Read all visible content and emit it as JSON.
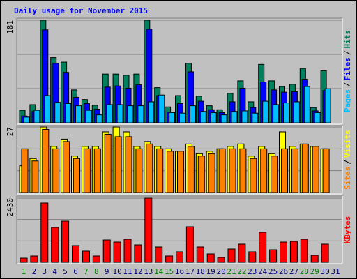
{
  "chart_data": [
    {
      "type": "bar",
      "title": "Daily usage for November 2015",
      "ylim": [
        0,
        181
      ],
      "yticks": [
        181
      ],
      "legend_separator": "/",
      "series": [
        {
          "name": "Hits",
          "color": "#00805c",
          "values": [
            22,
            32,
            181,
            115,
            107,
            58,
            41,
            31,
            86,
            86,
            84,
            86,
            181,
            62,
            28,
            48,
            105,
            47,
            30,
            23,
            52,
            74,
            37,
            103,
            74,
            64,
            68,
            96,
            27,
            92,
            null
          ]
        },
        {
          "name": "Files",
          "color": "#0000ff",
          "values": [
            12,
            20,
            164,
            105,
            89,
            45,
            34,
            24,
            63,
            65,
            61,
            67,
            165,
            48,
            19,
            34,
            90,
            38,
            23,
            18,
            37,
            61,
            27,
            72,
            58,
            54,
            55,
            77,
            21,
            57,
            null
          ]
        },
        {
          "name": "Pages",
          "color": "#00c0ff",
          "values": [
            10,
            22,
            48,
            36,
            34,
            30,
            22,
            14,
            32,
            32,
            30,
            30,
            37,
            49,
            18,
            17,
            30,
            20,
            18,
            14,
            20,
            21,
            17,
            38,
            32,
            35,
            37,
            64,
            18,
            60,
            null
          ]
        }
      ]
    },
    {
      "type": "bar",
      "ylim": [
        0,
        27
      ],
      "yticks": [
        27
      ],
      "legend_separator": "/",
      "series": [
        {
          "name": "Visits",
          "color": "#ffff00",
          "values": [
            11,
            14,
            27,
            19,
            22,
            15,
            19,
            19,
            25,
            27,
            25,
            19,
            21,
            19,
            18,
            17,
            20,
            16,
            17,
            18,
            19,
            20,
            15,
            19,
            16,
            25,
            19,
            20,
            19,
            18,
            null
          ]
        },
        {
          "name": "Sites",
          "color": "#ff8000",
          "values": [
            18,
            13,
            26,
            18,
            21,
            14,
            18,
            18,
            24,
            23,
            23,
            18,
            20,
            18,
            17,
            17,
            19,
            15,
            16,
            18,
            18,
            18,
            14,
            18,
            15,
            18,
            18,
            20,
            19,
            18,
            null
          ]
        }
      ]
    },
    {
      "type": "bar",
      "ylim": [
        0,
        2430
      ],
      "yticks": [
        2430
      ],
      "categories": [
        "1",
        "2",
        "3",
        "4",
        "5",
        "6",
        "7",
        "8",
        "9",
        "10",
        "11",
        "12",
        "13",
        "14",
        "15",
        "16",
        "17",
        "18",
        "19",
        "20",
        "21",
        "22",
        "23",
        "24",
        "25",
        "26",
        "27",
        "28",
        "29",
        "30",
        "31"
      ],
      "category_colors": [
        "#008000",
        "#000080",
        "#000080",
        "#000080",
        "#000080",
        "#000080",
        "#008000",
        "#008000",
        "#000080",
        "#000080",
        "#000080",
        "#000080",
        "#000080",
        "#008000",
        "#008000",
        "#000080",
        "#000080",
        "#000080",
        "#000080",
        "#000080",
        "#008000",
        "#008000",
        "#000080",
        "#000080",
        "#000080",
        "#000080",
        "#000080",
        "#008000",
        "#008000",
        "#000080",
        "#000080"
      ],
      "series": [
        {
          "name": "KBytes",
          "color": "#ff0000",
          "values": [
            158,
            238,
            2245,
            1321,
            1558,
            634,
            423,
            238,
            845,
            766,
            871,
            660,
            2430,
            581,
            238,
            396,
            1347,
            581,
            317,
            185,
            502,
            687,
            396,
            1136,
            475,
            766,
            792,
            871,
            264,
            687,
            null
          ]
        }
      ]
    }
  ]
}
